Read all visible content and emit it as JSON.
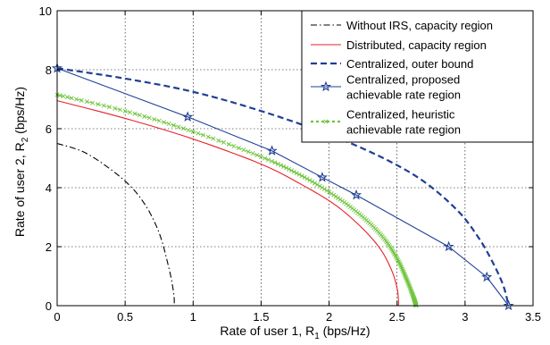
{
  "chart_data": {
    "type": "line",
    "title": "",
    "xlabel_main": "Rate of user 1, R",
    "xlabel_sub": "1",
    "xlabel_unit": " (bps/Hz)",
    "ylabel_main": "Rate of user 2, R",
    "ylabel_sub": "2",
    "ylabel_unit": " (bps/Hz)",
    "xlim": [
      0,
      3.5
    ],
    "ylim": [
      0,
      10
    ],
    "xticks": [
      0,
      0.5,
      1,
      1.5,
      2,
      2.5,
      3,
      3.5
    ],
    "xtick_labels": [
      "0",
      "0.5",
      "1",
      "1.5",
      "2",
      "2.5",
      "3",
      "3.5"
    ],
    "yticks": [
      0,
      2,
      4,
      6,
      8,
      10
    ],
    "ytick_labels": [
      "0",
      "2",
      "4",
      "6",
      "8",
      "10"
    ],
    "grid": true,
    "legend_position": "top-right",
    "series": [
      {
        "name": "Without IRS, capacity region",
        "color": "#000000",
        "dash": "dashdot",
        "marker": "none",
        "x": [
          0,
          0.2,
          0.4,
          0.55,
          0.65,
          0.72,
          0.77,
          0.81,
          0.84,
          0.86,
          0.86
        ],
        "y": [
          5.5,
          5.2,
          4.6,
          4.0,
          3.4,
          2.8,
          2.2,
          1.5,
          0.9,
          0.3,
          0
        ]
      },
      {
        "name": "Distributed, capacity region",
        "color": "#e8202a",
        "dash": "solid",
        "marker": "none",
        "x": [
          0,
          0.5,
          1.0,
          1.5,
          1.8,
          2.05,
          2.25,
          2.38,
          2.46,
          2.5,
          2.51,
          2.51
        ],
        "y": [
          6.95,
          6.35,
          5.65,
          4.8,
          4.1,
          3.4,
          2.6,
          1.9,
          1.2,
          0.6,
          0.2,
          0
        ]
      },
      {
        "name": "Centralized, outer bound",
        "color": "#1f3f95",
        "dash": "dashed",
        "marker": "none",
        "x": [
          0,
          0.5,
          1.0,
          1.5,
          2.0,
          2.4,
          2.7,
          2.95,
          3.1,
          3.2,
          3.28,
          3.32
        ],
        "y": [
          8.05,
          7.7,
          7.25,
          6.6,
          5.8,
          5.0,
          4.2,
          3.2,
          2.3,
          1.5,
          0.7,
          0
        ]
      },
      {
        "name": "Centralized, proposed achievable rate region",
        "color": "#1f3f95",
        "dash": "solid",
        "marker": "star",
        "x": [
          0,
          0.96,
          1.58,
          1.95,
          2.2,
          2.88,
          3.16,
          3.32
        ],
        "y": [
          8.05,
          6.4,
          5.25,
          4.35,
          3.75,
          2.0,
          0.97,
          0
        ]
      },
      {
        "name": "Centralized, heuristic achievable rate region",
        "color": "#6fc43c",
        "dash": "dashed",
        "marker": "x",
        "x": [
          0,
          0.5,
          1.0,
          1.5,
          1.8,
          2.05,
          2.25,
          2.4,
          2.5,
          2.57,
          2.62,
          2.64
        ],
        "y": [
          7.15,
          6.6,
          5.9,
          5.05,
          4.4,
          3.7,
          3.0,
          2.3,
          1.6,
          0.9,
          0.3,
          0
        ]
      }
    ],
    "legend_lines": [
      [
        "Without IRS, capacity region"
      ],
      [
        "Distributed, capacity region"
      ],
      [
        "Centralized, outer bound"
      ],
      [
        "Centralized, proposed",
        "achievable rate region"
      ],
      [
        "Centralized, heuristic",
        "achievable rate region"
      ]
    ]
  }
}
